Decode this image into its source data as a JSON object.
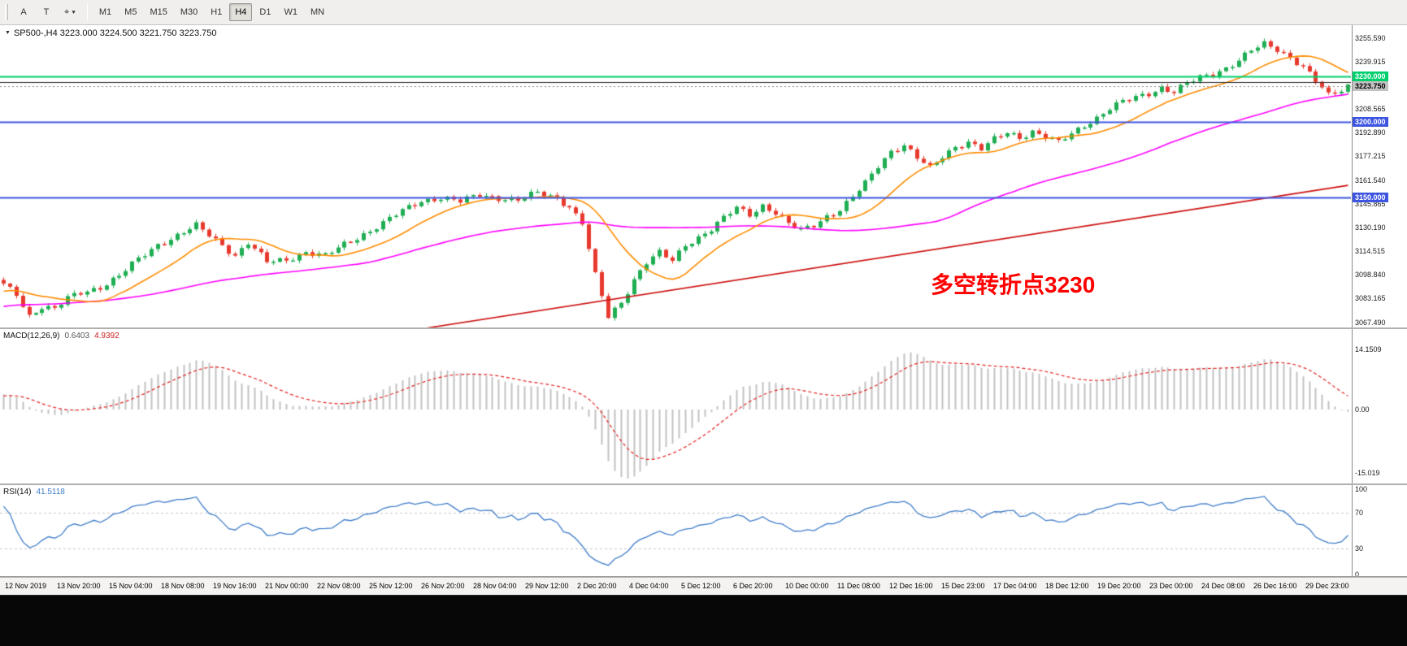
{
  "toolbar": {
    "left_buttons": [
      {
        "name": "annotate-a",
        "label": "A"
      },
      {
        "name": "text-tool",
        "label": "T"
      },
      {
        "name": "draw-tools",
        "label": "⌖",
        "caret": "▾"
      }
    ],
    "timeframes": [
      "M1",
      "M5",
      "M15",
      "M30",
      "H1",
      "H4",
      "D1",
      "W1",
      "MN"
    ],
    "active_timeframe": "H4"
  },
  "chart": {
    "title": "SP500-,H4 3223.000 3224.500 3221.750 3223.750",
    "annotation": "多空转折点3230",
    "annotation_color": "#ff0000"
  },
  "macd_panel": {
    "name": "MACD(12,26,9)",
    "value": "0.6403",
    "signal": "4.9392"
  },
  "rsi_panel": {
    "name": "RSI(14)",
    "value": "41.5118"
  },
  "chart_data": {
    "type": "candlestick",
    "symbol": "SP500-",
    "timeframe": "H4",
    "current_ohlc": {
      "open": 3223.0,
      "high": 3224.5,
      "low": 3221.75,
      "close": 3223.75
    },
    "n_candles": 210,
    "price_top": 3264,
    "price_bottom": 3064,
    "up_color": "#1fae53",
    "down_color": "#e8392e",
    "close_anchors": [
      [
        0,
        3092
      ],
      [
        2,
        3086
      ],
      [
        4,
        3072
      ],
      [
        6,
        3078
      ],
      [
        8,
        3076
      ],
      [
        10,
        3083
      ],
      [
        12,
        3087
      ],
      [
        15,
        3091
      ],
      [
        18,
        3098
      ],
      [
        21,
        3109
      ],
      [
        24,
        3119
      ],
      [
        27,
        3125
      ],
      [
        30,
        3131
      ],
      [
        33,
        3122
      ],
      [
        36,
        3112
      ],
      [
        38,
        3120
      ],
      [
        41,
        3107
      ],
      [
        44,
        3109
      ],
      [
        47,
        3114
      ],
      [
        50,
        3111
      ],
      [
        53,
        3119
      ],
      [
        56,
        3126
      ],
      [
        59,
        3133
      ],
      [
        62,
        3141
      ],
      [
        65,
        3148
      ],
      [
        68,
        3150
      ],
      [
        71,
        3147
      ],
      [
        74,
        3152
      ],
      [
        77,
        3150
      ],
      [
        80,
        3148
      ],
      [
        83,
        3153
      ],
      [
        86,
        3150
      ],
      [
        88,
        3144
      ],
      [
        90,
        3133
      ],
      [
        92,
        3098
      ],
      [
        94,
        3071
      ],
      [
        96,
        3081
      ],
      [
        98,
        3096
      ],
      [
        100,
        3107
      ],
      [
        102,
        3113
      ],
      [
        104,
        3108
      ],
      [
        106,
        3119
      ],
      [
        108,
        3124
      ],
      [
        110,
        3129
      ],
      [
        112,
        3136
      ],
      [
        114,
        3143
      ],
      [
        116,
        3139
      ],
      [
        118,
        3145
      ],
      [
        120,
        3140
      ],
      [
        122,
        3132
      ],
      [
        124,
        3128
      ],
      [
        126,
        3132
      ],
      [
        128,
        3138
      ],
      [
        130,
        3142
      ],
      [
        132,
        3150
      ],
      [
        134,
        3159
      ],
      [
        136,
        3171
      ],
      [
        138,
        3181
      ],
      [
        140,
        3185
      ],
      [
        142,
        3176
      ],
      [
        144,
        3169
      ],
      [
        146,
        3177
      ],
      [
        148,
        3184
      ],
      [
        150,
        3187
      ],
      [
        152,
        3182
      ],
      [
        154,
        3188
      ],
      [
        156,
        3193
      ],
      [
        158,
        3190
      ],
      [
        160,
        3194
      ],
      [
        162,
        3190
      ],
      [
        164,
        3186
      ],
      [
        166,
        3192
      ],
      [
        168,
        3198
      ],
      [
        170,
        3203
      ],
      [
        172,
        3209
      ],
      [
        174,
        3213
      ],
      [
        176,
        3216
      ],
      [
        178,
        3219
      ],
      [
        180,
        3223
      ],
      [
        182,
        3220
      ],
      [
        184,
        3225
      ],
      [
        186,
        3229
      ],
      [
        188,
        3232
      ],
      [
        190,
        3236
      ],
      [
        192,
        3241
      ],
      [
        194,
        3247
      ],
      [
        196,
        3251
      ],
      [
        198,
        3248
      ],
      [
        200,
        3243
      ],
      [
        202,
        3237
      ],
      [
        204,
        3227
      ],
      [
        206,
        3217
      ],
      [
        208,
        3221
      ],
      [
        209,
        3224
      ]
    ],
    "ma_fast": {
      "period": 13,
      "color": "#ff8c00"
    },
    "ma_mid": {
      "period": 55,
      "color": "#ff00ff"
    },
    "ma_long_line": {
      "color": "#cc1111",
      "from_i": 30,
      "from_price": 3040,
      "to_i": 209,
      "to_price": 3158
    },
    "hlines": [
      {
        "price": 3230.0,
        "label": "3230.000",
        "color": "#00cf6e",
        "width": 2
      },
      {
        "price": 3226.5,
        "label": "",
        "color": "#222222",
        "width": 1
      },
      {
        "price": 3200.0,
        "label": "3200.000",
        "color": "#3d55e0",
        "width": 2
      },
      {
        "price": 3150.0,
        "label": "3150.000",
        "color": "#3d55e0",
        "width": 2
      }
    ],
    "current_price": {
      "price": 3223.75,
      "label": "3223.750",
      "bg": "#c2c2c2",
      "fg": "#000000"
    },
    "price_ticks": [
      3255.59,
      3239.915,
      3208.565,
      3192.89,
      3177.215,
      3161.54,
      3145.865,
      3130.19,
      3114.515,
      3098.84,
      3083.165,
      3067.49
    ],
    "macd": {
      "zero_py": 99,
      "scale": 5.2,
      "axis": [
        {
          "v": 14.1509,
          "text": "14.1509"
        },
        {
          "v": 0,
          "text": "0.00"
        },
        {
          "v": -15.019,
          "text": "-15.019"
        }
      ],
      "hist_color": "#c2c2c2",
      "signal_color": "#e32020"
    },
    "rsi": {
      "axis": [
        {
          "v": 100,
          "text": "100"
        },
        {
          "v": 70,
          "text": "70"
        },
        {
          "v": 30,
          "text": "30"
        },
        {
          "v": 0,
          "text": "0"
        }
      ],
      "levels": [
        70,
        30
      ],
      "line_color": "#3f7cc9"
    },
    "time_labels": [
      "12 Nov 2019",
      "13 Nov 20:00",
      "15 Nov 04:00",
      "18 Nov 08:00",
      "19 Nov 16:00",
      "21 Nov 00:00",
      "22 Nov 08:00",
      "25 Nov 12:00",
      "26 Nov 20:00",
      "28 Nov 04:00",
      "29 Nov 12:00",
      "2 Dec 20:00",
      "4 Dec 04:00",
      "5 Dec 12:00",
      "6 Dec 20:00",
      "10 Dec 00:00",
      "11 Dec 08:00",
      "12 Dec 16:00",
      "15 Dec 23:00",
      "17 Dec 04:00",
      "18 Dec 12:00",
      "19 Dec 20:00",
      "23 Dec 00:00",
      "24 Dec 08:00",
      "26 Dec 16:00",
      "29 Dec 23:00"
    ]
  }
}
